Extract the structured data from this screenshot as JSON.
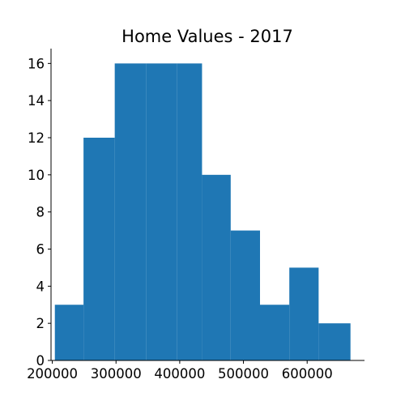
{
  "chart_data": {
    "type": "bar",
    "title": "Home Values - 2017",
    "xlabel": "",
    "ylabel": "",
    "bin_edges": [
      204000,
      249000,
      298000,
      347000,
      396000,
      435000,
      480000,
      526000,
      572000,
      618000,
      668000
    ],
    "values": [
      3,
      12,
      16,
      16,
      16,
      10,
      7,
      3,
      5,
      2
    ],
    "xlim": [
      198000,
      690000
    ],
    "ylim": [
      0,
      16.8
    ],
    "xticks": [
      200000,
      300000,
      400000,
      500000,
      600000
    ],
    "yticks": [
      0,
      2,
      4,
      6,
      8,
      10,
      12,
      14,
      16
    ],
    "bar_color": "#1f77b4",
    "grid": false,
    "spines": "left-bottom"
  }
}
